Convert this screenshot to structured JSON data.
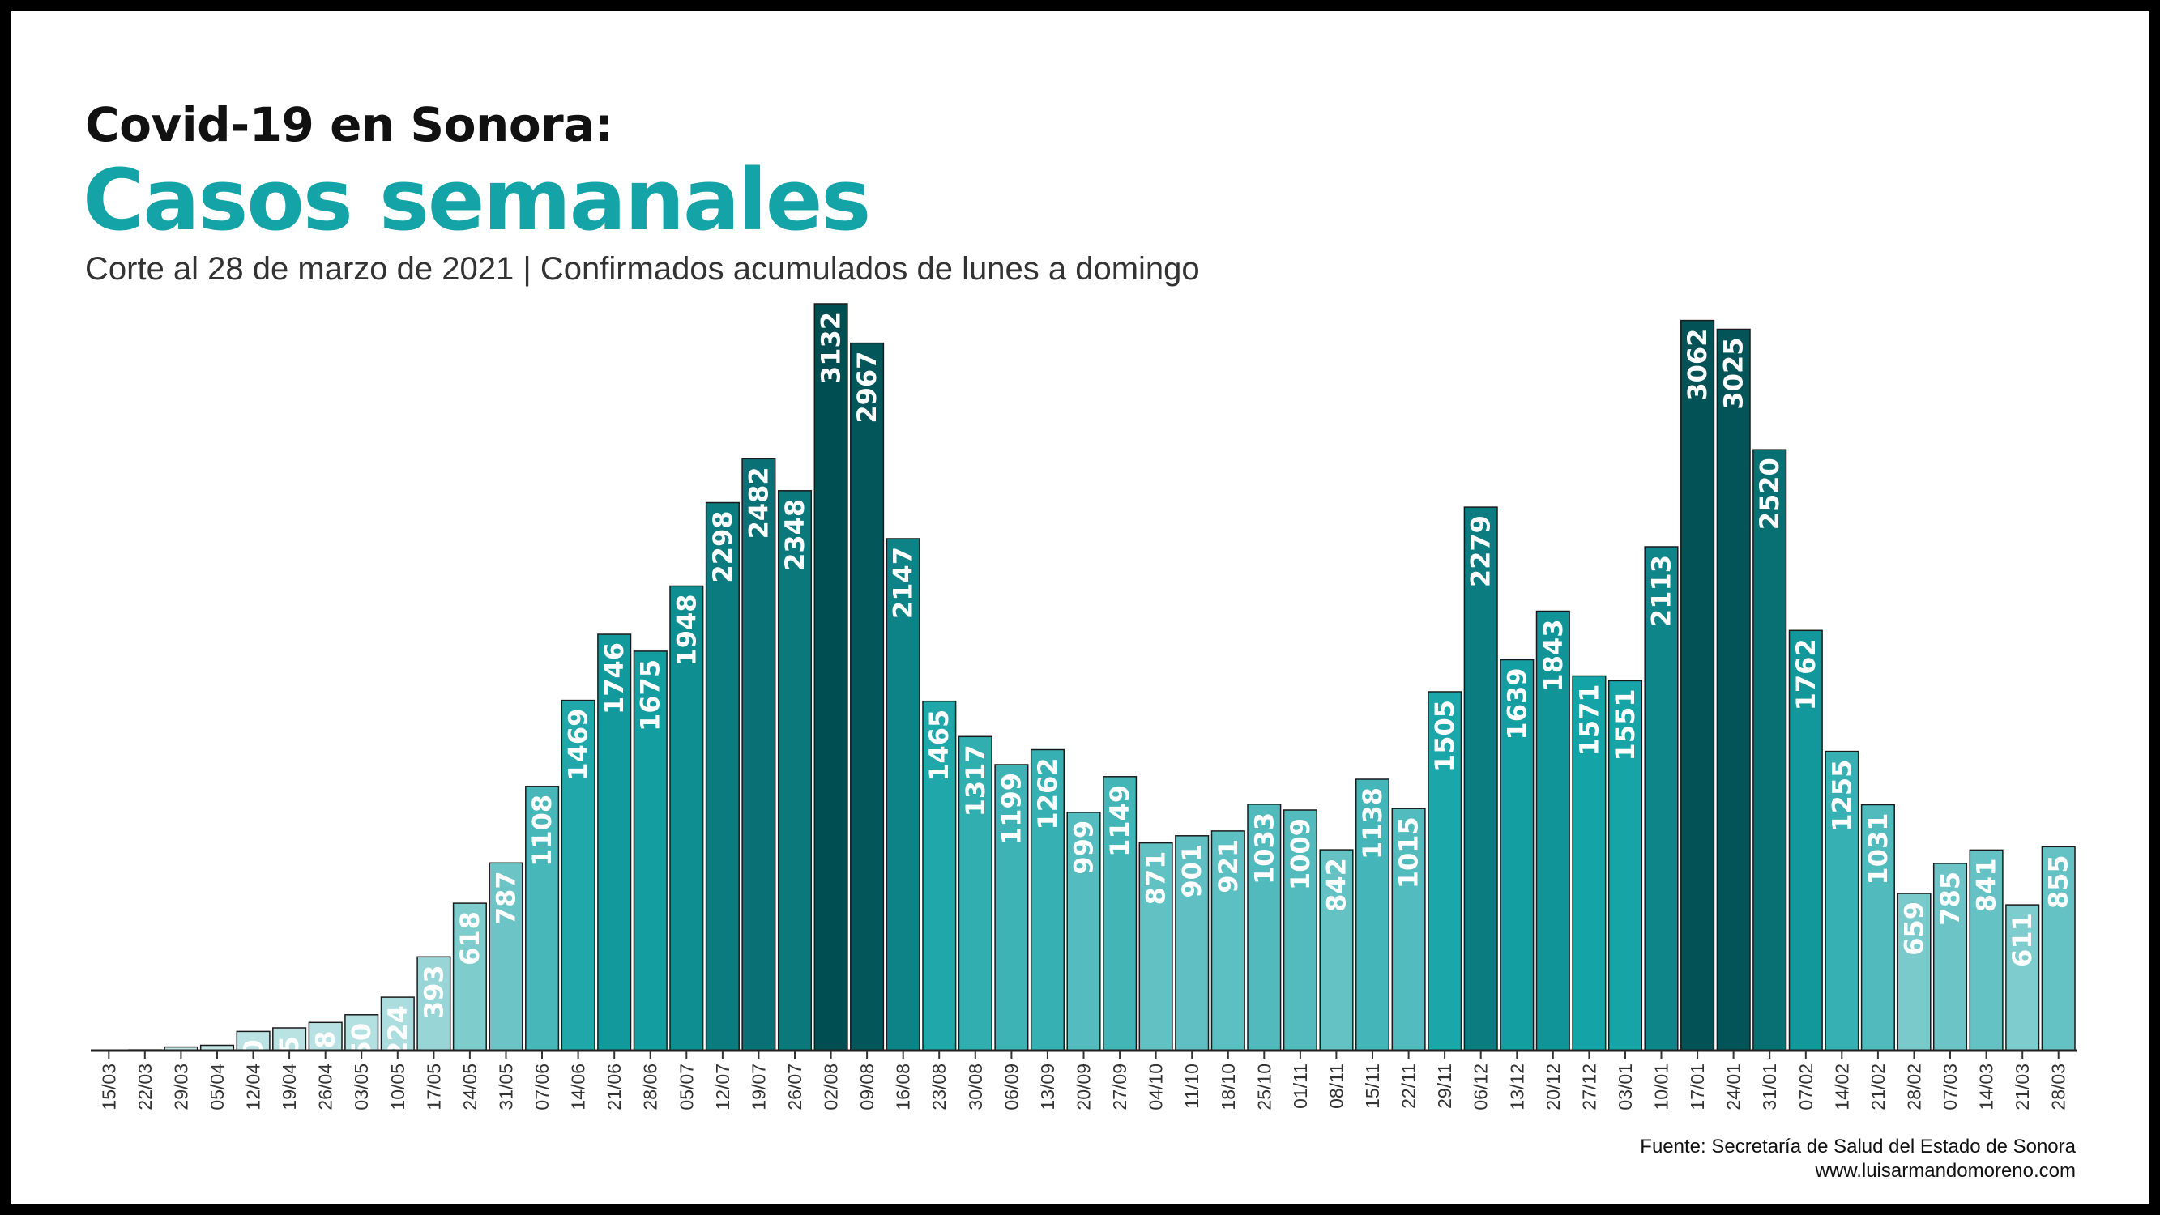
{
  "header": {
    "title_line1": "Covid-19 en Sonora:",
    "title_line2": "Casos semanales",
    "subtitle": "Corte al 28 de marzo de 2021 | Confirmados acumulados de lunes a domingo"
  },
  "footer": {
    "source": "Fuente: Secretaría de Salud del Estado de Sonora",
    "website": "www.luisarmandomoreno.com"
  },
  "colors": {
    "light": "#c4e6e7",
    "mid": "#14a3a6",
    "dark": "#014e52"
  },
  "chart_data": {
    "type": "bar",
    "categories": [
      "15/03",
      "22/03",
      "29/03",
      "05/04",
      "12/04",
      "19/04",
      "26/04",
      "03/05",
      "10/05",
      "17/05",
      "24/05",
      "31/05",
      "07/06",
      "14/06",
      "21/06",
      "28/06",
      "05/07",
      "12/07",
      "19/07",
      "26/07",
      "02/08",
      "09/08",
      "16/08",
      "23/08",
      "30/08",
      "06/09",
      "13/09",
      "20/09",
      "27/09",
      "04/10",
      "11/10",
      "18/10",
      "25/10",
      "01/11",
      "08/11",
      "15/11",
      "22/11",
      "29/11",
      "06/12",
      "13/12",
      "20/12",
      "27/12",
      "03/01",
      "10/01",
      "17/01",
      "24/01",
      "31/01",
      "07/02",
      "14/02",
      "21/02",
      "28/02",
      "07/03",
      "14/03",
      "21/03",
      "28/03"
    ],
    "values": [
      2,
      3,
      15,
      22,
      80,
      95,
      118,
      150,
      224,
      393,
      618,
      787,
      1108,
      1469,
      1746,
      1675,
      1948,
      2298,
      2482,
      2348,
      3132,
      2967,
      2147,
      1465,
      1317,
      1199,
      1262,
      999,
      1149,
      871,
      901,
      921,
      1033,
      1009,
      842,
      1138,
      1015,
      1505,
      2279,
      1639,
      1843,
      1571,
      1551,
      2113,
      3062,
      3025,
      2520,
      1762,
      1255,
      1031,
      659,
      785,
      841,
      611,
      855
    ],
    "ylim": [
      0,
      3132
    ],
    "grid": false,
    "legend": "none"
  }
}
